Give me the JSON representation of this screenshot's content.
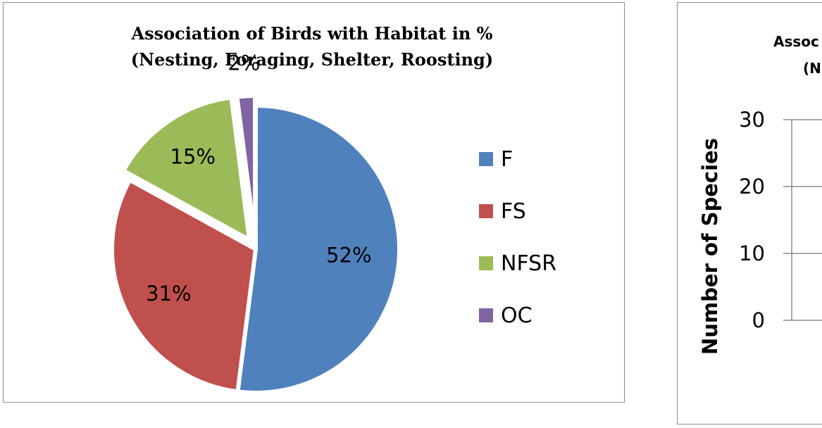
{
  "chart_data": [
    {
      "type": "pie",
      "title": "Association of Birds with Habitat in %",
      "subtitle": "(Nesting, Foraging, Shelter, Roosting)",
      "legend_position": "right",
      "slices": [
        {
          "label": "F",
          "value": 52,
          "display": "52%",
          "color": "#4F81BD"
        },
        {
          "label": "FS",
          "value": 31,
          "display": "31%",
          "color": "#C0504D"
        },
        {
          "label": "NFSR",
          "value": 15,
          "display": "15%",
          "color": "#9BBB59"
        },
        {
          "label": "OC",
          "value": 2,
          "display": "2%",
          "color": "#8064A2"
        }
      ]
    },
    {
      "type": "bar",
      "title": "Assoc",
      "subtitle": "(N",
      "ylabel": "Number of Species",
      "ylim": [
        0,
        30
      ],
      "yticks": [
        "0",
        "10",
        "20",
        "30"
      ],
      "grid": true
    }
  ]
}
